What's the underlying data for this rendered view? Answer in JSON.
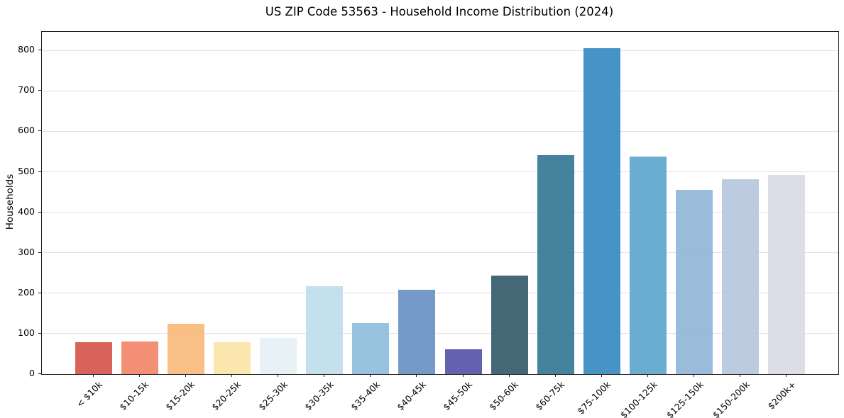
{
  "figure": {
    "background": "#ffffff",
    "spine_color": "#1a1a1a",
    "grid_color": "#e1e1e1",
    "text_color": "#000000"
  },
  "chart_data": {
    "type": "bar",
    "title": "US ZIP Code 53563 - Household Income Distribution (2024)",
    "xlabel": "",
    "ylabel": "Households",
    "categories": [
      "< $10k",
      "$10-15k",
      "$15-20k",
      "$20-25k",
      "$25-30k",
      "$30-35k",
      "$35-40k",
      "$40-45k",
      "$45-50k",
      "$50-60k",
      "$60-75k",
      "$75-100k",
      "$100-125k",
      "$125-150k",
      "$150-200k",
      "$200k+"
    ],
    "values": [
      79,
      81,
      125,
      78,
      90,
      218,
      126,
      209,
      61,
      244,
      542,
      805,
      537,
      456,
      481,
      492
    ],
    "bar_colors": [
      "#d6564e",
      "#f1876b",
      "#f9ba7b",
      "#fbe5a7",
      "#e6f0f4",
      "#bfdeeb",
      "#8fbedd",
      "#6b92c4",
      "#5955ab",
      "#375d6d",
      "#377993",
      "#398bc2",
      "#60a7cc",
      "#92b7d8",
      "#b7c7de",
      "#d8dae6"
    ],
    "ylim": [
      0,
      846
    ],
    "yticks": [
      0,
      100,
      200,
      300,
      400,
      500,
      600,
      700,
      800
    ],
    "grid": "horizontal",
    "legend": "none",
    "x_tick_rotation_deg": 45
  }
}
